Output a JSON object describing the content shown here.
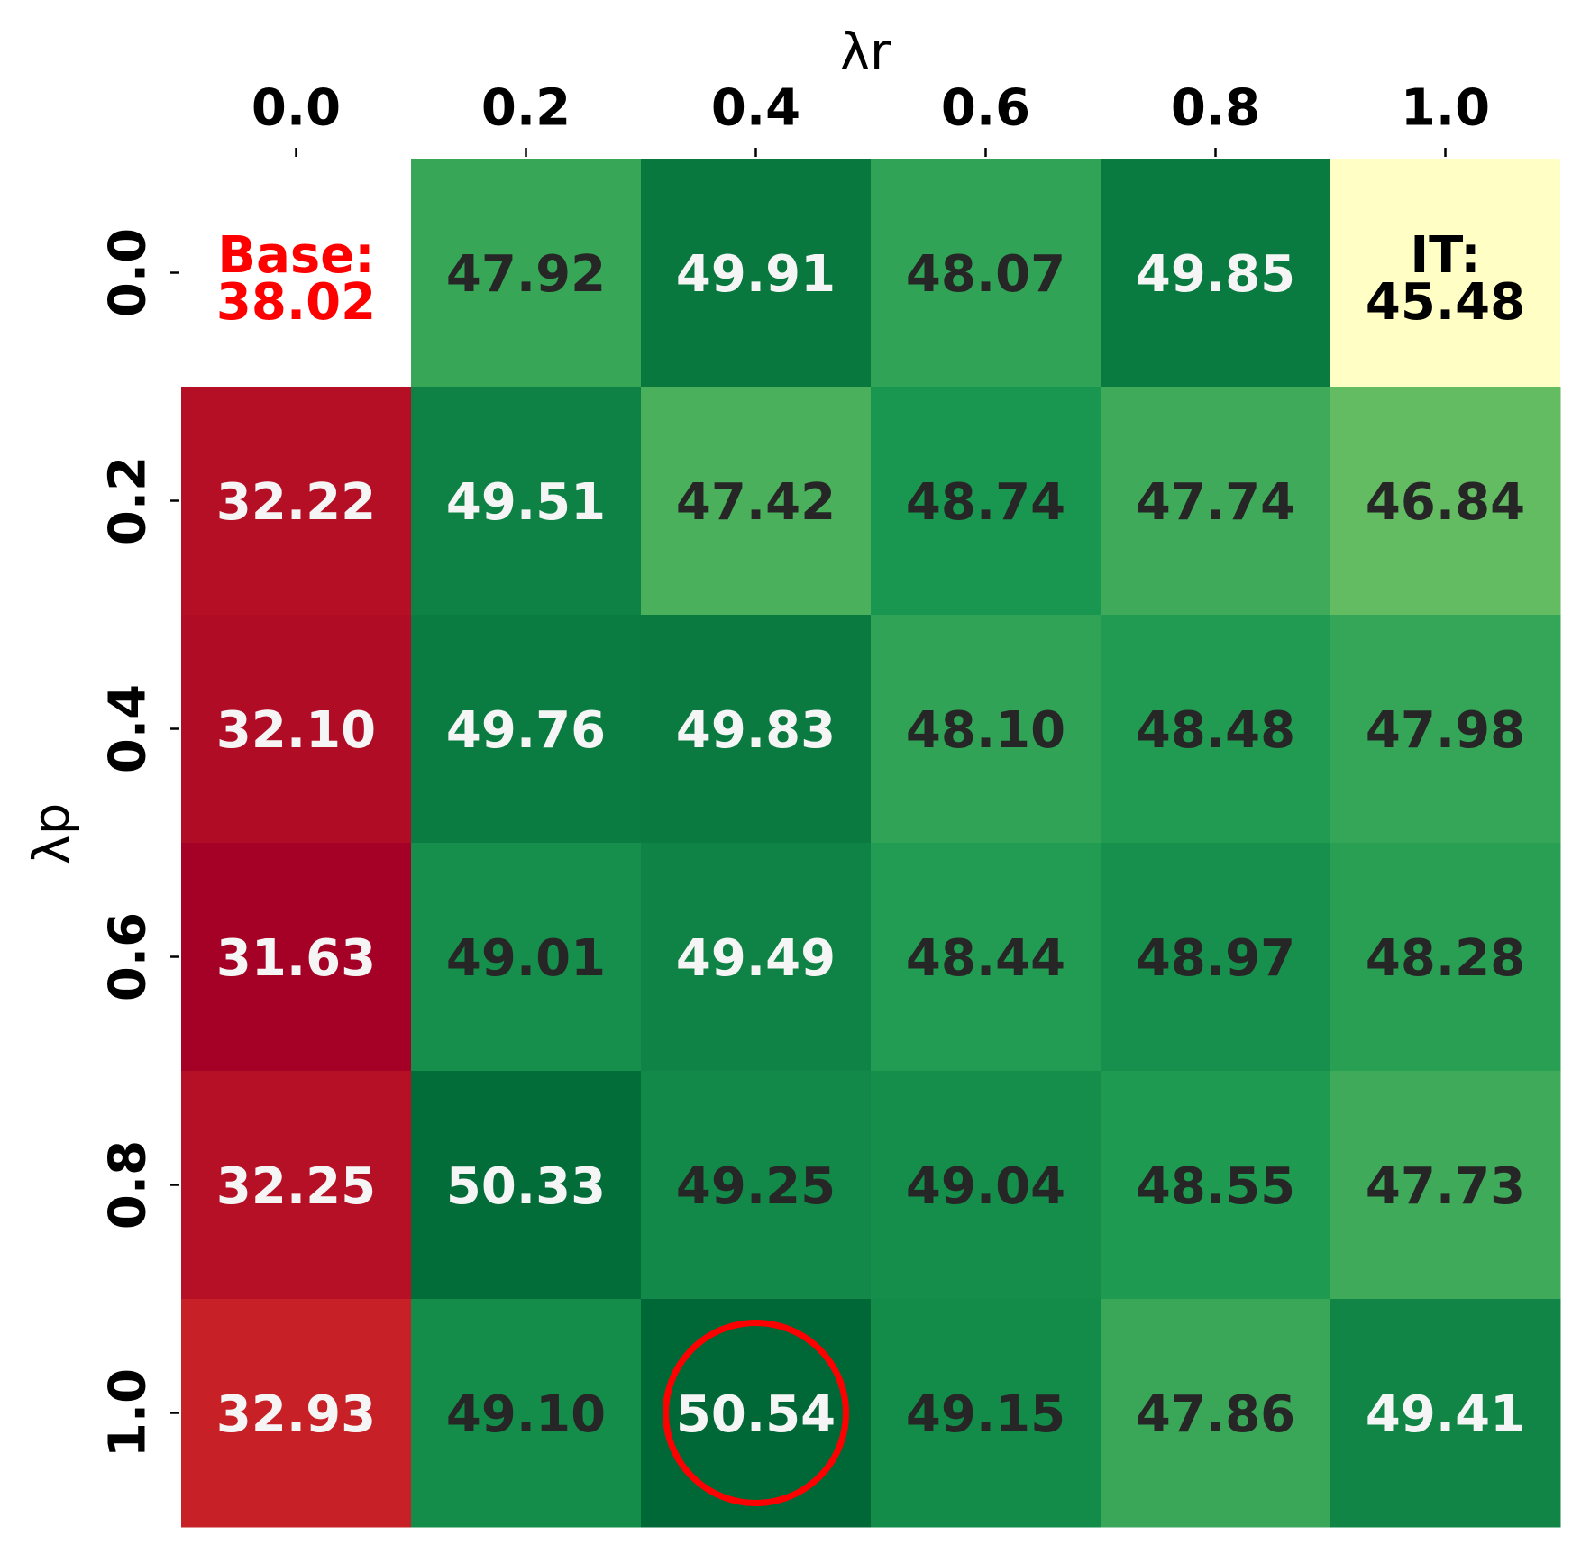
{
  "chart_data": {
    "type": "heatmap",
    "xlabel": "λr",
    "ylabel": "λp",
    "x_tick_labels": [
      "0.0",
      "0.2",
      "0.4",
      "0.6",
      "0.8",
      "1.0"
    ],
    "y_tick_labels": [
      "0.0",
      "0.2",
      "0.4",
      "0.6",
      "0.8",
      "1.0"
    ],
    "x_axis_position": "top",
    "grid": false,
    "legend": "none",
    "values": [
      [
        null,
        47.92,
        49.91,
        48.07,
        49.85,
        null
      ],
      [
        32.22,
        49.51,
        47.42,
        48.74,
        47.74,
        46.84
      ],
      [
        32.1,
        49.76,
        49.83,
        48.1,
        48.48,
        47.98
      ],
      [
        31.63,
        49.01,
        49.49,
        48.44,
        48.97,
        48.28
      ],
      [
        32.25,
        50.33,
        49.25,
        49.04,
        48.55,
        47.73
      ],
      [
        32.93,
        49.1,
        50.54,
        49.15,
        47.86,
        49.41
      ]
    ],
    "special_cells": [
      {
        "row": 0,
        "col": 0,
        "label": "Base:",
        "value": "38.02",
        "text_color": "#ff0000",
        "background": "#ffffff"
      },
      {
        "row": 0,
        "col": 5,
        "label": "IT:",
        "value": "45.48",
        "text_color": "#000000",
        "background": "#ffffc5"
      }
    ],
    "highlight": {
      "row": 5,
      "col": 2,
      "shape": "circle",
      "color": "#ff0000"
    },
    "colormap": "RdYlGn",
    "color_range": [
      31.63,
      50.54
    ],
    "cell_text_colors": {
      "light": "#f5f5f5",
      "dark": "#262626"
    }
  }
}
